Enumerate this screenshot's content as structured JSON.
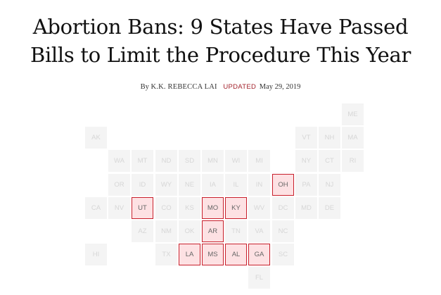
{
  "article": {
    "headline_line1": "Abortion Bans: 9 States Have Passed",
    "headline_line2": "Bills to Limit the Procedure This Year",
    "byline_prefix": "By",
    "author": "K.K. REBECCA LAI",
    "updated_label": "UPDATED",
    "date": "May 29, 2019"
  },
  "colors": {
    "ban_border": "#c8202c",
    "ban_fill": "#fde1e3",
    "inactive_fill": "#f4f4f4",
    "inactive_text": "#d6d6d6",
    "updated_red": "#a3232d"
  },
  "map": {
    "states": [
      {
        "abbr": "ME",
        "row": 0,
        "col": 11,
        "ban": false
      },
      {
        "abbr": "AK",
        "row": 1,
        "col": 0,
        "ban": false
      },
      {
        "abbr": "VT",
        "row": 1,
        "col": 9,
        "ban": false
      },
      {
        "abbr": "NH",
        "row": 1,
        "col": 10,
        "ban": false
      },
      {
        "abbr": "MA",
        "row": 1,
        "col": 11,
        "ban": false
      },
      {
        "abbr": "WA",
        "row": 2,
        "col": 1,
        "ban": false
      },
      {
        "abbr": "MT",
        "row": 2,
        "col": 2,
        "ban": false
      },
      {
        "abbr": "ND",
        "row": 2,
        "col": 3,
        "ban": false
      },
      {
        "abbr": "SD",
        "row": 2,
        "col": 4,
        "ban": false
      },
      {
        "abbr": "MN",
        "row": 2,
        "col": 5,
        "ban": false
      },
      {
        "abbr": "WI",
        "row": 2,
        "col": 6,
        "ban": false
      },
      {
        "abbr": "MI",
        "row": 2,
        "col": 7,
        "ban": false
      },
      {
        "abbr": "NY",
        "row": 2,
        "col": 9,
        "ban": false
      },
      {
        "abbr": "CT",
        "row": 2,
        "col": 10,
        "ban": false
      },
      {
        "abbr": "RI",
        "row": 2,
        "col": 11,
        "ban": false
      },
      {
        "abbr": "OR",
        "row": 3,
        "col": 1,
        "ban": false
      },
      {
        "abbr": "ID",
        "row": 3,
        "col": 2,
        "ban": false
      },
      {
        "abbr": "WY",
        "row": 3,
        "col": 3,
        "ban": false
      },
      {
        "abbr": "NE",
        "row": 3,
        "col": 4,
        "ban": false
      },
      {
        "abbr": "IA",
        "row": 3,
        "col": 5,
        "ban": false
      },
      {
        "abbr": "IL",
        "row": 3,
        "col": 6,
        "ban": false
      },
      {
        "abbr": "IN",
        "row": 3,
        "col": 7,
        "ban": false
      },
      {
        "abbr": "OH",
        "row": 3,
        "col": 8,
        "ban": true
      },
      {
        "abbr": "PA",
        "row": 3,
        "col": 9,
        "ban": false
      },
      {
        "abbr": "NJ",
        "row": 3,
        "col": 10,
        "ban": false
      },
      {
        "abbr": "CA",
        "row": 4,
        "col": 0,
        "ban": false
      },
      {
        "abbr": "NV",
        "row": 4,
        "col": 1,
        "ban": false
      },
      {
        "abbr": "UT",
        "row": 4,
        "col": 2,
        "ban": true
      },
      {
        "abbr": "CO",
        "row": 4,
        "col": 3,
        "ban": false
      },
      {
        "abbr": "KS",
        "row": 4,
        "col": 4,
        "ban": false
      },
      {
        "abbr": "MO",
        "row": 4,
        "col": 5,
        "ban": true
      },
      {
        "abbr": "KY",
        "row": 4,
        "col": 6,
        "ban": true
      },
      {
        "abbr": "WV",
        "row": 4,
        "col": 7,
        "ban": false
      },
      {
        "abbr": "DC",
        "row": 4,
        "col": 8,
        "ban": false
      },
      {
        "abbr": "MD",
        "row": 4,
        "col": 9,
        "ban": false
      },
      {
        "abbr": "DE",
        "row": 4,
        "col": 10,
        "ban": false
      },
      {
        "abbr": "AZ",
        "row": 5,
        "col": 2,
        "ban": false
      },
      {
        "abbr": "NM",
        "row": 5,
        "col": 3,
        "ban": false
      },
      {
        "abbr": "OK",
        "row": 5,
        "col": 4,
        "ban": false
      },
      {
        "abbr": "AR",
        "row": 5,
        "col": 5,
        "ban": true
      },
      {
        "abbr": "TN",
        "row": 5,
        "col": 6,
        "ban": false
      },
      {
        "abbr": "VA",
        "row": 5,
        "col": 7,
        "ban": false
      },
      {
        "abbr": "NC",
        "row": 5,
        "col": 8,
        "ban": false
      },
      {
        "abbr": "HI",
        "row": 6,
        "col": 0,
        "ban": false
      },
      {
        "abbr": "TX",
        "row": 6,
        "col": 3,
        "ban": false
      },
      {
        "abbr": "LA",
        "row": 6,
        "col": 4,
        "ban": true
      },
      {
        "abbr": "MS",
        "row": 6,
        "col": 5,
        "ban": true
      },
      {
        "abbr": "AL",
        "row": 6,
        "col": 6,
        "ban": true
      },
      {
        "abbr": "GA",
        "row": 6,
        "col": 7,
        "ban": true
      },
      {
        "abbr": "SC",
        "row": 6,
        "col": 8,
        "ban": false
      },
      {
        "abbr": "FL",
        "row": 7,
        "col": 7,
        "ban": false
      }
    ]
  }
}
